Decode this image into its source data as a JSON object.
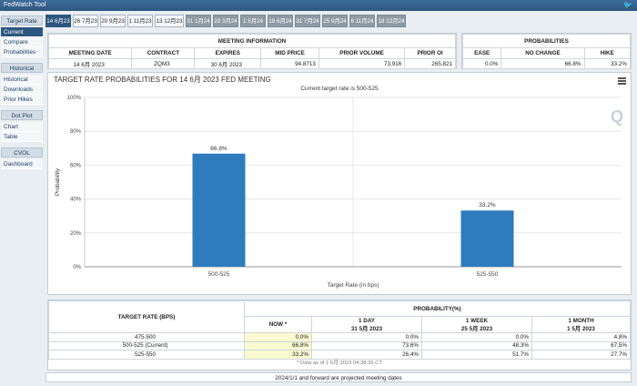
{
  "app": {
    "title": "FedWatch Tool",
    "twitter_icon": "twitter-icon"
  },
  "sidebar": {
    "sections": [
      {
        "header": "Target Rate",
        "items": [
          "Current",
          "Compare",
          "Probabilities"
        ]
      },
      {
        "header": "Historical",
        "items": [
          "Historical",
          "Downloads",
          "Prior Hikes"
        ]
      },
      {
        "header": "Dot Plot",
        "items": [
          "Chart",
          "Table"
        ]
      },
      {
        "header": "CVOL",
        "items": [
          "Dashboard"
        ]
      }
    ],
    "active_item": "Current"
  },
  "tabs": [
    "14 6月23",
    "26 7月23",
    "20 9月23",
    "1 11月23",
    "13 12月23",
    "31 1月24",
    "20 3月24",
    "1 5月24",
    "19 6月24",
    "31 7月24",
    "25 9月24",
    "6 11月24",
    "18 12月24"
  ],
  "meeting_info": {
    "title": "MEETING INFORMATION",
    "headers": [
      "MEETING DATE",
      "CONTRACT",
      "EXPIRES",
      "MID PRICE",
      "PRIOR VOLUME",
      "PRIOR OI"
    ],
    "row": [
      "14 6月 2023",
      "ZQM3",
      "30 6月 2023",
      "94.8713",
      "73,916",
      "265,821"
    ]
  },
  "probabilities": {
    "title": "PROBABILITIES",
    "headers": [
      "EASE",
      "NO CHANGE",
      "HIKE"
    ],
    "row": [
      "0.0%",
      "66.8%",
      "33.2%"
    ]
  },
  "chart": {
    "title": "TARGET RATE PROBABILITIES FOR 14 6月 2023 FED MEETING",
    "subtitle": "Current target rate is 500-525",
    "menu_icon": "hamburger-menu-icon",
    "watermark": "Q"
  },
  "chart_data": {
    "type": "bar",
    "categories": [
      "500-525",
      "525-550"
    ],
    "values": [
      66.8,
      33.2
    ],
    "data_labels": [
      "66.8%",
      "33.2%"
    ],
    "xlabel": "Target Rate (in bps)",
    "ylabel": "Probability",
    "ylim": [
      0,
      100
    ],
    "yticks": [
      "0%",
      "20%",
      "40%",
      "60%",
      "80%",
      "100%"
    ],
    "bar_color": "#2e7bbd",
    "grid": true
  },
  "prob_table": {
    "col_target": "TARGET RATE (BPS)",
    "col_prob": "PROBABILITY(%)",
    "sub_headers": [
      {
        "line1": "NOW *",
        "line2": ""
      },
      {
        "line1": "1 DAY",
        "line2": "31 5月 2023"
      },
      {
        "line1": "1 WEEK",
        "line2": "25 5月 2023"
      },
      {
        "line1": "1 MONTH",
        "line2": "1 5月 2023"
      }
    ],
    "rows": [
      {
        "label": "475-500",
        "now": "0.0%",
        "day": "0.0%",
        "week": "0.0%",
        "month": "4.8%"
      },
      {
        "label": "500-525 (Current)",
        "now": "66.8%",
        "day": "73.6%",
        "week": "48.3%",
        "month": "67.5%"
      },
      {
        "label": "525-550",
        "now": "33.2%",
        "day": "26.4%",
        "week": "51.7%",
        "month": "27.7%"
      }
    ],
    "note": "* Data as of 1 6月 2023 04:38:35 CT"
  },
  "footer": "2024/1/1 and forward are projected meeting dates"
}
